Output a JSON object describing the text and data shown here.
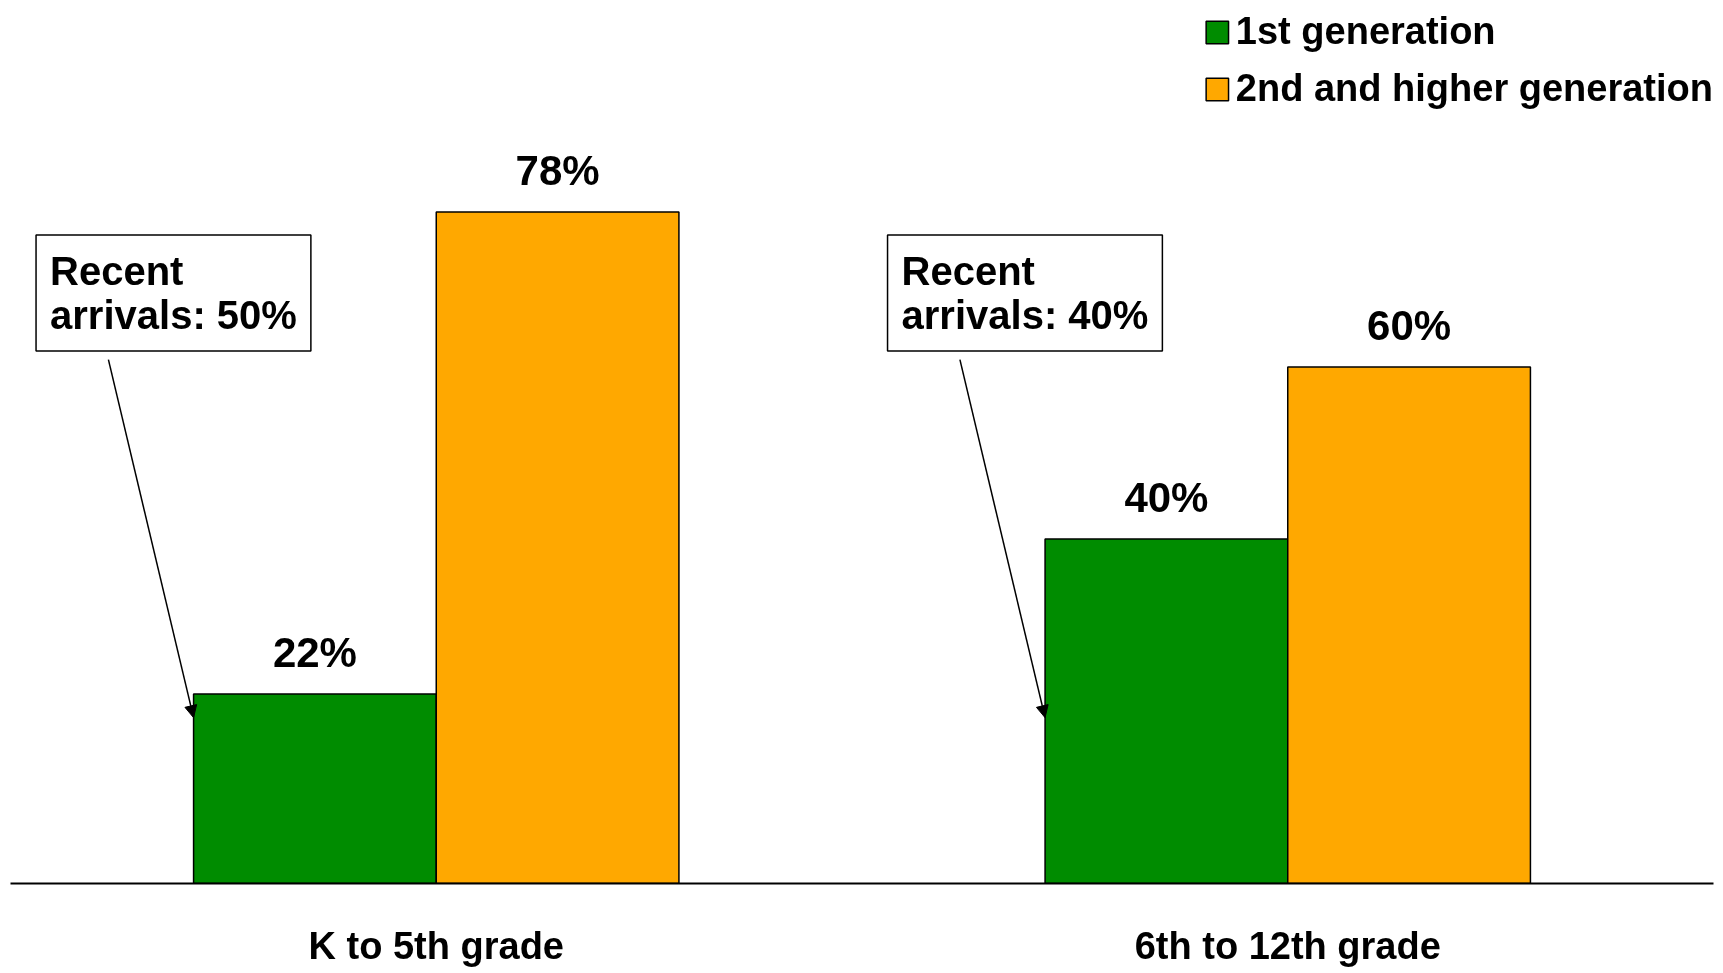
{
  "chart_data": {
    "type": "bar",
    "categories": [
      "K to 5th grade",
      "6th to 12th grade"
    ],
    "series": [
      {
        "name": "1st generation",
        "color": "#008c00",
        "values": [
          22,
          40
        ],
        "value_labels": [
          "22%",
          "40%"
        ]
      },
      {
        "name": "2nd and higher generation",
        "color": "#ffa800",
        "values": [
          78,
          60
        ],
        "value_labels": [
          "78%",
          "60%"
        ]
      }
    ],
    "legend": "top right",
    "grid": false,
    "tick_labels": "x",
    "annotations": [
      "Recent arrivals: 50%",
      "Recent arrivals: 40%"
    ]
  }
}
